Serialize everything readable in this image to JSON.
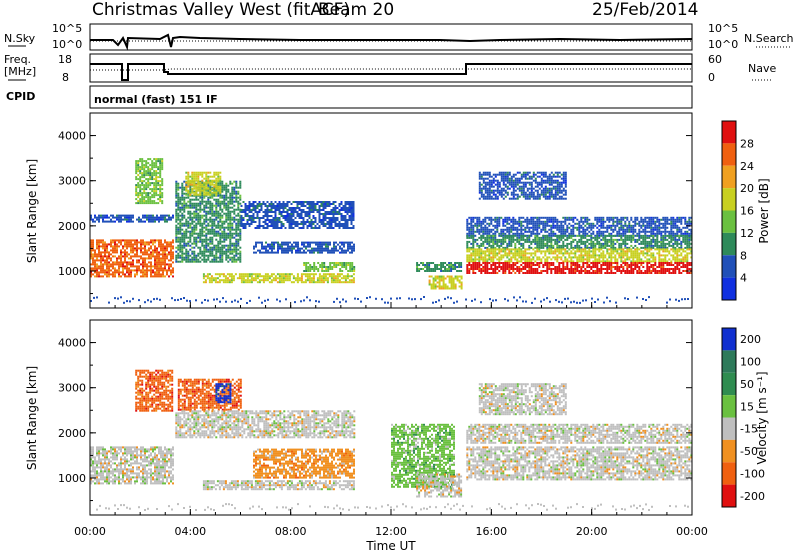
{
  "header": {
    "station": "Christmas Valley West (fitACF)",
    "beam": "Beam 20",
    "date": "25/Feb/2014"
  },
  "top_panels": {
    "nsky_label": "N.Sky",
    "nsky_ticks": [
      "10^5",
      "10^0"
    ],
    "nsearch_label": "N.Search",
    "nsearch_ticks": [
      "10^5",
      "10^0"
    ],
    "freq_label_1": "Freq.",
    "freq_label_2": "[MHz]",
    "freq_ticks": [
      "18",
      "8"
    ],
    "nave_label": "Nave",
    "nave_ticks": [
      "60",
      "0"
    ],
    "cpid_label": "CPID",
    "cpid_value": "normal (fast) 151 IF"
  },
  "chart_data": [
    {
      "type": "heatmap",
      "name": "power",
      "ylabel": "Slant Range [km]",
      "xlabel": "Time UT",
      "x_ticks": [
        "00:00",
        "04:00",
        "08:00",
        "12:00",
        "16:00",
        "20:00",
        "00:00"
      ],
      "xlim_hours": [
        0,
        24
      ],
      "y_ticks": [
        "1000",
        "2000",
        "3000",
        "4000"
      ],
      "ylim": [
        180,
        4500
      ],
      "colorbar_label": "Power [dB]",
      "colorbar_ticks": [
        "4",
        "8",
        "12",
        "16",
        "20",
        "24",
        "28"
      ],
      "colorbar_colors": [
        "#1030e0",
        "#2050b8",
        "#2e8a5a",
        "#6ac040",
        "#c8d020",
        "#f0a020",
        "#f06010",
        "#e01010"
      ],
      "regions": [
        {
          "t0": 0.0,
          "t1": 3.3,
          "r0": 900,
          "r1": 1700,
          "level": 6
        },
        {
          "t0": 0.0,
          "t1": 3.3,
          "r0": 2100,
          "r1": 2250,
          "level": 1
        },
        {
          "t0": 1.8,
          "t1": 2.9,
          "r0": 2500,
          "r1": 3500,
          "level": 3
        },
        {
          "t0": 3.4,
          "t1": 6.0,
          "r0": 1200,
          "r1": 3000,
          "level": 2
        },
        {
          "t0": 3.8,
          "t1": 5.2,
          "r0": 2700,
          "r1": 3200,
          "level": 4
        },
        {
          "t0": 4.5,
          "t1": 10.5,
          "r0": 750,
          "r1": 950,
          "level": 4
        },
        {
          "t0": 6.0,
          "t1": 10.5,
          "r0": 1950,
          "r1": 2550,
          "level": 1
        },
        {
          "t0": 6.5,
          "t1": 10.5,
          "r0": 1400,
          "r1": 1650,
          "level": 1
        },
        {
          "t0": 8.5,
          "t1": 10.5,
          "r0": 1000,
          "r1": 1200,
          "level": 3
        },
        {
          "t0": 13.0,
          "t1": 14.8,
          "r0": 1000,
          "r1": 1200,
          "level": 2
        },
        {
          "t0": 13.5,
          "t1": 14.8,
          "r0": 600,
          "r1": 900,
          "level": 4
        },
        {
          "t0": 15.0,
          "t1": 24.0,
          "r0": 1800,
          "r1": 2200,
          "level": 1
        },
        {
          "t0": 15.0,
          "t1": 24.0,
          "r0": 1500,
          "r1": 1800,
          "level": 2
        },
        {
          "t0": 15.0,
          "t1": 24.0,
          "r0": 1200,
          "r1": 1500,
          "level": 4
        },
        {
          "t0": 15.0,
          "t1": 24.0,
          "r0": 950,
          "r1": 1200,
          "level": 7
        },
        {
          "t0": 15.5,
          "t1": 19.0,
          "r0": 2600,
          "r1": 3200,
          "level": 1
        }
      ]
    },
    {
      "type": "heatmap",
      "name": "velocity",
      "ylabel": "Slant Range [km]",
      "xlabel": "Time UT",
      "x_ticks": [
        "00:00",
        "04:00",
        "08:00",
        "12:00",
        "16:00",
        "20:00",
        "00:00"
      ],
      "xlim_hours": [
        0,
        24
      ],
      "y_ticks": [
        "1000",
        "2000",
        "3000",
        "4000"
      ],
      "ylim": [
        180,
        4500
      ],
      "colorbar_label": "Velocity [m s⁻¹]",
      "colorbar_ticks": [
        "200",
        "100",
        "50",
        "15",
        "-15",
        "-50",
        "-100",
        "-200"
      ],
      "colorbar_colors": [
        "#1030d0",
        "#2e7a5a",
        "#2f8c50",
        "#6ac040",
        "#bfbfbf",
        "#f09020",
        "#f06010",
        "#e01010"
      ],
      "regions": [
        {
          "t0": 0.0,
          "t1": 3.3,
          "r0": 900,
          "r1": 1700,
          "level": 4
        },
        {
          "t0": 1.8,
          "t1": 3.3,
          "r0": 2500,
          "r1": 3400,
          "level": 6
        },
        {
          "t0": 3.5,
          "t1": 6.0,
          "r0": 2500,
          "r1": 3200,
          "level": 6
        },
        {
          "t0": 5.0,
          "t1": 5.6,
          "r0": 2700,
          "r1": 3100,
          "level": 0
        },
        {
          "t0": 3.4,
          "t1": 10.5,
          "r0": 1900,
          "r1": 2500,
          "level": 4
        },
        {
          "t0": 4.5,
          "t1": 10.5,
          "r0": 750,
          "r1": 950,
          "level": 4
        },
        {
          "t0": 6.5,
          "t1": 10.5,
          "r0": 1000,
          "r1": 1650,
          "level": 5
        },
        {
          "t0": 12.0,
          "t1": 14.5,
          "r0": 800,
          "r1": 2200,
          "level": 3
        },
        {
          "t0": 13.0,
          "t1": 14.8,
          "r0": 600,
          "r1": 1100,
          "level": 4
        },
        {
          "t0": 15.0,
          "t1": 24.0,
          "r0": 950,
          "r1": 1700,
          "level": 4
        },
        {
          "t0": 15.0,
          "t1": 24.0,
          "r0": 1800,
          "r1": 2200,
          "level": 4
        },
        {
          "t0": 15.5,
          "t1": 19.0,
          "r0": 2400,
          "r1": 3100,
          "level": 4
        }
      ]
    }
  ]
}
